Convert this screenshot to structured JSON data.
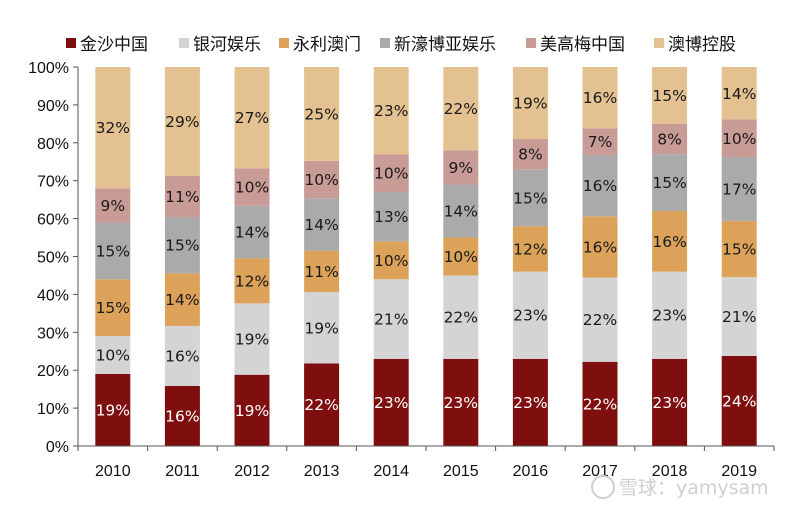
{
  "chart_data": {
    "type": "bar",
    "stacked": true,
    "categories": [
      "2010",
      "2011",
      "2012",
      "2013",
      "2014",
      "2015",
      "2016",
      "2017",
      "2018",
      "2019"
    ],
    "series": [
      {
        "name": "金沙中国",
        "color": "#7f0f0f",
        "label_color": "#ffffff",
        "values": [
          19,
          16,
          19,
          22,
          23,
          23,
          23,
          22,
          23,
          24
        ]
      },
      {
        "name": "银河娱乐",
        "color": "#d4d4d4",
        "label_color": "#1a1a1a",
        "values": [
          10,
          16,
          19,
          19,
          21,
          22,
          23,
          22,
          23,
          21
        ]
      },
      {
        "name": "永利澳门",
        "color": "#dca25a",
        "label_color": "#1a1a1a",
        "values": [
          15,
          14,
          12,
          11,
          10,
          10,
          12,
          16,
          16,
          15
        ]
      },
      {
        "name": "新濠博亚娱乐",
        "color": "#aaaaaa",
        "label_color": "#1a1a1a",
        "values": [
          15,
          15,
          14,
          14,
          13,
          14,
          15,
          16,
          15,
          17
        ]
      },
      {
        "name": "美高梅中国",
        "color": "#c99b96",
        "label_color": "#1a1a1a",
        "values": [
          9,
          11,
          10,
          10,
          10,
          9,
          8,
          7,
          8,
          10
        ]
      },
      {
        "name": "澳博控股",
        "color": "#e4c191",
        "label_color": "#1a1a1a",
        "values": [
          32,
          29,
          27,
          25,
          23,
          22,
          19,
          16,
          15,
          14
        ]
      }
    ],
    "label_suffix": "%",
    "ylim": [
      0,
      100
    ],
    "y_ticks": [
      "0%",
      "10%",
      "20%",
      "30%",
      "40%",
      "50%",
      "60%",
      "70%",
      "80%",
      "90%",
      "100%"
    ],
    "title": "",
    "xlabel": "",
    "ylabel": "",
    "legend_position": "top",
    "grid": false
  },
  "watermark": "雪球：yamysam"
}
